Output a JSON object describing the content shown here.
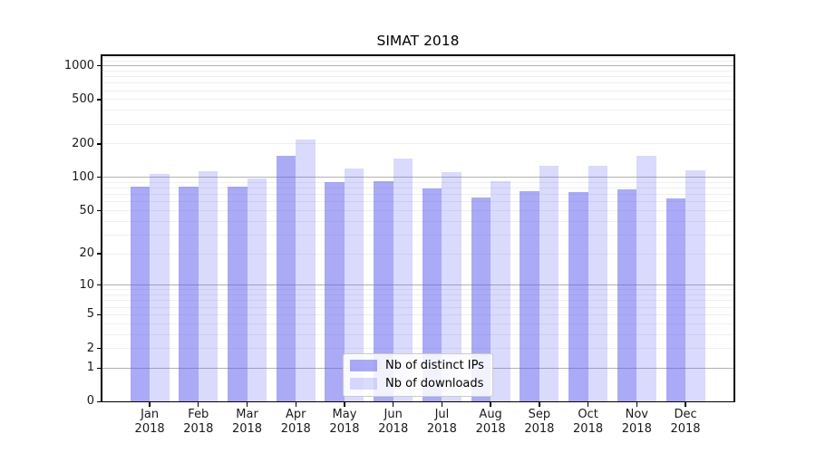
{
  "figure": {
    "title": "SIMAT 2018",
    "background": "#ffffff"
  },
  "legend": {
    "items": [
      {
        "label": "Nb of distinct IPs",
        "swatch": "rgba(85,85,240,0.5)"
      },
      {
        "label": "Nb of downloads",
        "swatch": "rgba(85,85,240,0.22)"
      }
    ]
  },
  "chart_data": {
    "type": "bar",
    "title": "SIMAT 2018",
    "categories": [
      "Jan 2018",
      "Feb 2018",
      "Mar 2018",
      "Apr 2018",
      "May 2018",
      "Jun 2018",
      "Jul 2018",
      "Aug 2018",
      "Sep 2018",
      "Oct 2018",
      "Nov 2018",
      "Dec 2018"
    ],
    "series": [
      {
        "name": "Nb of distinct IPs",
        "color": "rgba(85,85,240,0.5)",
        "values": [
          82,
          82,
          82,
          156,
          90,
          92,
          80,
          66,
          75,
          74,
          78,
          65
        ]
      },
      {
        "name": "Nb of downloads",
        "color": "rgba(85,85,240,0.22)",
        "values": [
          107,
          113,
          97,
          218,
          120,
          148,
          111,
          93,
          128,
          128,
          156,
          115
        ]
      }
    ],
    "yscale": "symlog",
    "yticks": [
      0,
      1,
      2,
      5,
      10,
      20,
      50,
      100,
      200,
      500,
      1000
    ],
    "major_grid_values": [
      1,
      10,
      100,
      1000
    ],
    "ylim": [
      0,
      1300
    ],
    "xlabel": "",
    "ylabel": "",
    "grid": "horizontal major+minor",
    "legend_position": "lower center"
  },
  "colors": {
    "major_gridline": "#b2b2b2",
    "minor_gridline": "#efefef",
    "axis": "#000000",
    "text": "#1a1a1a",
    "legend_border": "#cccccc",
    "legend_bg": "rgba(255,255,255,0.85)"
  }
}
